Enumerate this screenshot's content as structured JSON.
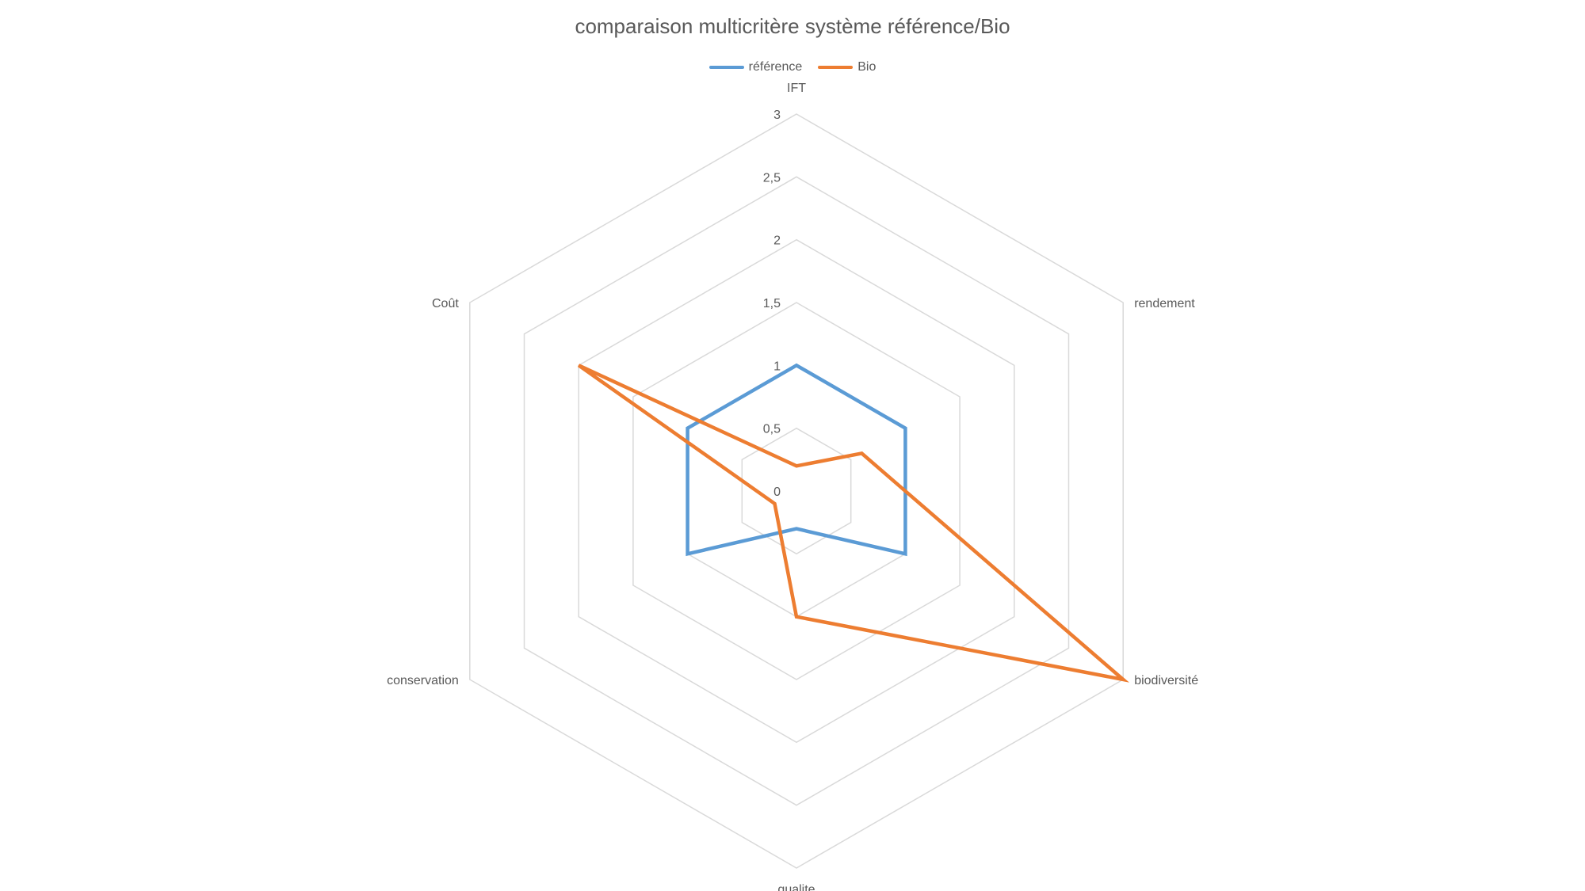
{
  "chart_data": {
    "type": "radar",
    "title": "comparaison multicritère système référence/Bio",
    "categories": [
      "IFT",
      "rendement",
      "biodiversité",
      "qualite",
      "conservation",
      "Coût"
    ],
    "series": [
      {
        "name": "référence",
        "color": "#5B9BD5",
        "values": [
          1,
          1,
          1,
          0.3,
          1,
          1
        ]
      },
      {
        "name": "Bio",
        "color": "#ED7D31",
        "values": [
          0.2,
          0.6,
          3,
          1,
          0.2,
          2
        ]
      }
    ],
    "r_ticks": [
      "0",
      "0,5",
      "1",
      "1,5",
      "2",
      "2,5",
      "3"
    ],
    "r_range": [
      0,
      3
    ],
    "grid": true,
    "grid_color": "#D9D9D9",
    "legend_position": "top"
  }
}
